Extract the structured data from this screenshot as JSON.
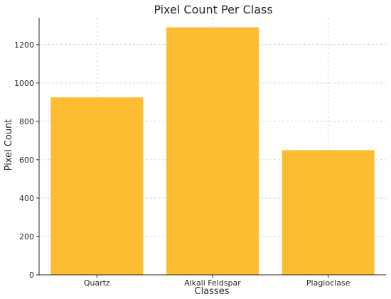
{
  "chart_data": {
    "type": "bar",
    "title": "Pixel Count Per Class",
    "xlabel": "Classes",
    "ylabel": "Pixel Count",
    "categories": [
      "Quartz",
      "Alkali Feldspar",
      "Plagioclase"
    ],
    "values": [
      925,
      1290,
      650
    ],
    "ylim": [
      0,
      1340
    ],
    "yticks": [
      0,
      200,
      400,
      600,
      800,
      1000,
      1200
    ],
    "grid": true,
    "bar_color": "#fdbd33"
  }
}
